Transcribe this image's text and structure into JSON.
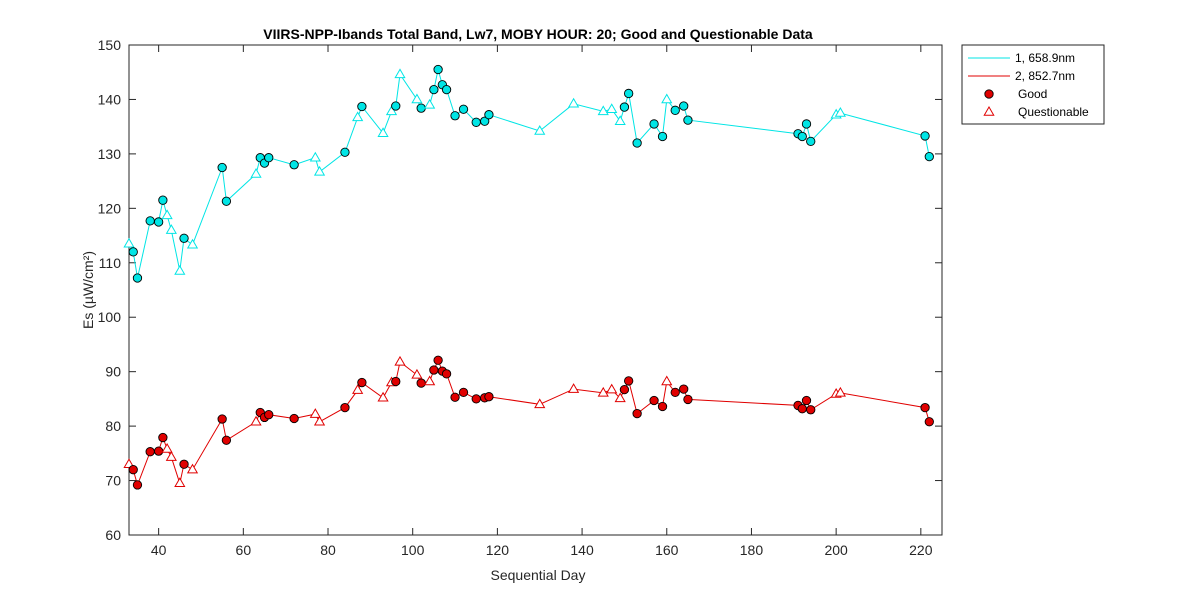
{
  "chart_data": {
    "type": "line",
    "title": "VIIRS-NPP-Ibands Total Band,  Lw7, MOBY HOUR: 20;  Good and Questionable Data",
    "xlabel": "Sequential Day",
    "ylabel": "Es (µW/cm²)",
    "xlim": [
      33,
      225
    ],
    "ylim": [
      60,
      150
    ],
    "xticks": [
      40,
      60,
      80,
      100,
      120,
      140,
      160,
      180,
      200,
      220
    ],
    "yticks": [
      60,
      70,
      80,
      90,
      100,
      110,
      120,
      130,
      140,
      150
    ],
    "grid": false,
    "legend_position": "outside-top-right",
    "legend": [
      {
        "label": "1, 658.9nm",
        "kind": "line",
        "color": "#00e5e5"
      },
      {
        "label": "2, 852.7nm",
        "kind": "line",
        "color": "#e00000"
      },
      {
        "label": "Good",
        "kind": "circle",
        "color": "#e00000"
      },
      {
        "label": "Questionable",
        "kind": "triangle",
        "color": "#e00000"
      }
    ],
    "series": [
      {
        "name": "1, 658.9nm",
        "color": "#00e5e5",
        "points": [
          {
            "x": 33,
            "y": 113.5,
            "q": "Q"
          },
          {
            "x": 34,
            "y": 112.0,
            "q": "G"
          },
          {
            "x": 35,
            "y": 107.2,
            "q": "G"
          },
          {
            "x": 38,
            "y": 117.7,
            "q": "G"
          },
          {
            "x": 40,
            "y": 117.5,
            "q": "G"
          },
          {
            "x": 41,
            "y": 121.5,
            "q": "G"
          },
          {
            "x": 42,
            "y": 118.7,
            "q": "Q"
          },
          {
            "x": 43,
            "y": 116.0,
            "q": "Q"
          },
          {
            "x": 45,
            "y": 108.5,
            "q": "Q"
          },
          {
            "x": 46,
            "y": 114.5,
            "q": "G"
          },
          {
            "x": 48,
            "y": 113.3,
            "q": "Q"
          },
          {
            "x": 55,
            "y": 127.5,
            "q": "G"
          },
          {
            "x": 56,
            "y": 121.3,
            "q": "G"
          },
          {
            "x": 63,
            "y": 126.3,
            "q": "Q"
          },
          {
            "x": 64,
            "y": 129.3,
            "q": "G"
          },
          {
            "x": 65,
            "y": 128.3,
            "q": "G"
          },
          {
            "x": 66,
            "y": 129.3,
            "q": "G"
          },
          {
            "x": 72,
            "y": 128.0,
            "q": "G"
          },
          {
            "x": 77,
            "y": 129.3,
            "q": "Q"
          },
          {
            "x": 78,
            "y": 126.7,
            "q": "Q"
          },
          {
            "x": 84,
            "y": 130.3,
            "q": "G"
          },
          {
            "x": 87,
            "y": 136.7,
            "q": "Q"
          },
          {
            "x": 88,
            "y": 138.7,
            "q": "G"
          },
          {
            "x": 93,
            "y": 133.8,
            "q": "Q"
          },
          {
            "x": 95,
            "y": 137.8,
            "q": "Q"
          },
          {
            "x": 96,
            "y": 138.8,
            "q": "G"
          },
          {
            "x": 97,
            "y": 144.6,
            "q": "Q"
          },
          {
            "x": 101,
            "y": 140.0,
            "q": "Q"
          },
          {
            "x": 102,
            "y": 138.4,
            "q": "G"
          },
          {
            "x": 104,
            "y": 139.0,
            "q": "Q"
          },
          {
            "x": 105,
            "y": 141.8,
            "q": "G"
          },
          {
            "x": 106,
            "y": 145.5,
            "q": "G"
          },
          {
            "x": 107,
            "y": 142.7,
            "q": "G"
          },
          {
            "x": 108,
            "y": 141.8,
            "q": "G"
          },
          {
            "x": 110,
            "y": 137.0,
            "q": "G"
          },
          {
            "x": 112,
            "y": 138.2,
            "q": "G"
          },
          {
            "x": 115,
            "y": 135.8,
            "q": "G"
          },
          {
            "x": 117,
            "y": 136.0,
            "q": "G"
          },
          {
            "x": 118,
            "y": 137.2,
            "q": "G"
          },
          {
            "x": 130,
            "y": 134.2,
            "q": "Q"
          },
          {
            "x": 138,
            "y": 139.2,
            "q": "Q"
          },
          {
            "x": 145,
            "y": 137.8,
            "q": "Q"
          },
          {
            "x": 147,
            "y": 138.2,
            "q": "Q"
          },
          {
            "x": 149,
            "y": 136.0,
            "q": "Q"
          },
          {
            "x": 150,
            "y": 138.6,
            "q": "G"
          },
          {
            "x": 151,
            "y": 141.1,
            "q": "G"
          },
          {
            "x": 153,
            "y": 132.0,
            "q": "G"
          },
          {
            "x": 157,
            "y": 135.5,
            "q": "G"
          },
          {
            "x": 159,
            "y": 133.2,
            "q": "G"
          },
          {
            "x": 160,
            "y": 140.0,
            "q": "Q"
          },
          {
            "x": 162,
            "y": 138.0,
            "q": "G"
          },
          {
            "x": 164,
            "y": 138.8,
            "q": "G"
          },
          {
            "x": 165,
            "y": 136.2,
            "q": "G"
          },
          {
            "x": 191,
            "y": 133.7,
            "q": "G"
          },
          {
            "x": 192,
            "y": 133.2,
            "q": "G"
          },
          {
            "x": 193,
            "y": 135.5,
            "q": "G"
          },
          {
            "x": 194,
            "y": 132.3,
            "q": "G"
          },
          {
            "x": 200,
            "y": 137.2,
            "q": "Q"
          },
          {
            "x": 201,
            "y": 137.5,
            "q": "Q"
          },
          {
            "x": 221,
            "y": 133.3,
            "q": "G"
          },
          {
            "x": 222,
            "y": 129.5,
            "q": "G"
          }
        ]
      },
      {
        "name": "2, 852.7nm",
        "color": "#e00000",
        "points": [
          {
            "x": 33,
            "y": 73.0,
            "q": "Q"
          },
          {
            "x": 34,
            "y": 72.0,
            "q": "G"
          },
          {
            "x": 35,
            "y": 69.2,
            "q": "G"
          },
          {
            "x": 38,
            "y": 75.3,
            "q": "G"
          },
          {
            "x": 40,
            "y": 75.4,
            "q": "G"
          },
          {
            "x": 41,
            "y": 77.9,
            "q": "G"
          },
          {
            "x": 42,
            "y": 75.8,
            "q": "Q"
          },
          {
            "x": 43,
            "y": 74.3,
            "q": "Q"
          },
          {
            "x": 45,
            "y": 69.5,
            "q": "Q"
          },
          {
            "x": 46,
            "y": 73.0,
            "q": "G"
          },
          {
            "x": 48,
            "y": 72.0,
            "q": "Q"
          },
          {
            "x": 55,
            "y": 81.3,
            "q": "G"
          },
          {
            "x": 56,
            "y": 77.4,
            "q": "G"
          },
          {
            "x": 63,
            "y": 80.8,
            "q": "Q"
          },
          {
            "x": 64,
            "y": 82.5,
            "q": "G"
          },
          {
            "x": 65,
            "y": 81.6,
            "q": "G"
          },
          {
            "x": 66,
            "y": 82.1,
            "q": "G"
          },
          {
            "x": 72,
            "y": 81.4,
            "q": "G"
          },
          {
            "x": 77,
            "y": 82.2,
            "q": "Q"
          },
          {
            "x": 78,
            "y": 80.8,
            "q": "Q"
          },
          {
            "x": 84,
            "y": 83.4,
            "q": "G"
          },
          {
            "x": 87,
            "y": 86.6,
            "q": "Q"
          },
          {
            "x": 88,
            "y": 88.0,
            "q": "G"
          },
          {
            "x": 93,
            "y": 85.2,
            "q": "Q"
          },
          {
            "x": 95,
            "y": 88.0,
            "q": "Q"
          },
          {
            "x": 96,
            "y": 88.2,
            "q": "G"
          },
          {
            "x": 97,
            "y": 91.8,
            "q": "Q"
          },
          {
            "x": 101,
            "y": 89.4,
            "q": "Q"
          },
          {
            "x": 102,
            "y": 87.9,
            "q": "G"
          },
          {
            "x": 104,
            "y": 88.2,
            "q": "Q"
          },
          {
            "x": 105,
            "y": 90.3,
            "q": "G"
          },
          {
            "x": 106,
            "y": 92.1,
            "q": "G"
          },
          {
            "x": 107,
            "y": 90.1,
            "q": "G"
          },
          {
            "x": 108,
            "y": 89.6,
            "q": "G"
          },
          {
            "x": 110,
            "y": 85.3,
            "q": "G"
          },
          {
            "x": 112,
            "y": 86.2,
            "q": "G"
          },
          {
            "x": 115,
            "y": 85.0,
            "q": "G"
          },
          {
            "x": 117,
            "y": 85.2,
            "q": "G"
          },
          {
            "x": 118,
            "y": 85.4,
            "q": "G"
          },
          {
            "x": 130,
            "y": 84.0,
            "q": "Q"
          },
          {
            "x": 138,
            "y": 86.8,
            "q": "Q"
          },
          {
            "x": 145,
            "y": 86.1,
            "q": "Q"
          },
          {
            "x": 147,
            "y": 86.7,
            "q": "Q"
          },
          {
            "x": 149,
            "y": 85.1,
            "q": "Q"
          },
          {
            "x": 150,
            "y": 86.7,
            "q": "G"
          },
          {
            "x": 151,
            "y": 88.3,
            "q": "G"
          },
          {
            "x": 153,
            "y": 82.3,
            "q": "G"
          },
          {
            "x": 157,
            "y": 84.7,
            "q": "G"
          },
          {
            "x": 159,
            "y": 83.6,
            "q": "G"
          },
          {
            "x": 160,
            "y": 88.2,
            "q": "Q"
          },
          {
            "x": 162,
            "y": 86.2,
            "q": "G"
          },
          {
            "x": 164,
            "y": 86.8,
            "q": "G"
          },
          {
            "x": 165,
            "y": 84.9,
            "q": "G"
          },
          {
            "x": 191,
            "y": 83.8,
            "q": "G"
          },
          {
            "x": 192,
            "y": 83.2,
            "q": "G"
          },
          {
            "x": 193,
            "y": 84.7,
            "q": "G"
          },
          {
            "x": 194,
            "y": 83.0,
            "q": "G"
          },
          {
            "x": 200,
            "y": 85.9,
            "q": "Q"
          },
          {
            "x": 201,
            "y": 86.1,
            "q": "Q"
          },
          {
            "x": 221,
            "y": 83.4,
            "q": "G"
          },
          {
            "x": 222,
            "y": 80.8,
            "q": "G"
          }
        ]
      }
    ]
  }
}
